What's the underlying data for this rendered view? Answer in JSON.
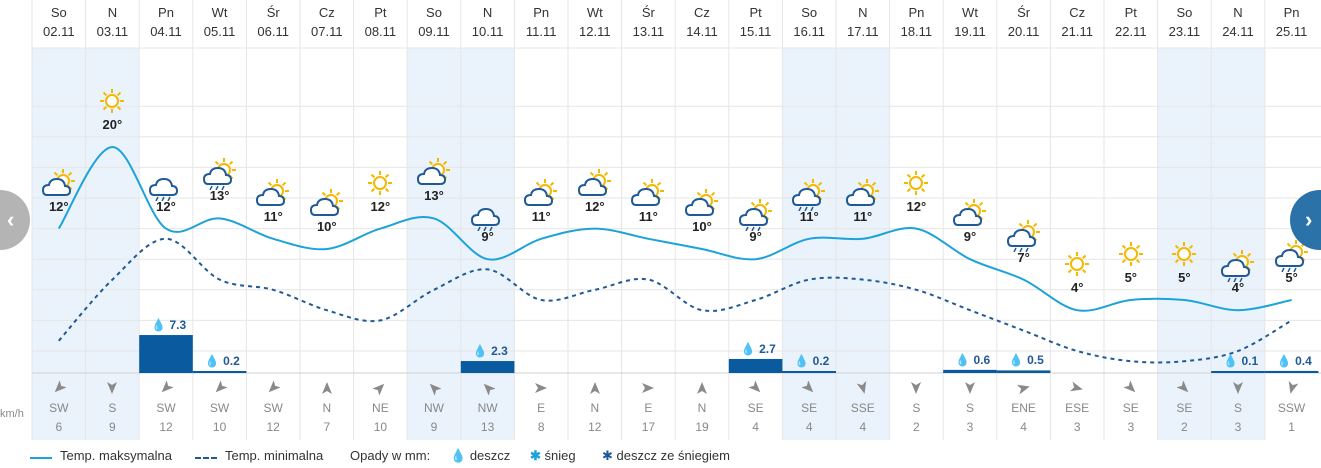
{
  "days": [
    {
      "day": "So",
      "date": "02.11",
      "weekend": true,
      "tmax": 12,
      "tmin": 1,
      "icon": "sun-cloud-icon",
      "precip": null,
      "dir": "SW",
      "speed": "6"
    },
    {
      "day": "N",
      "date": "03.11",
      "weekend": true,
      "tmax": 20,
      "tmin": 7,
      "icon": "sun-icon",
      "precip": null,
      "dir": "S",
      "speed": "9"
    },
    {
      "day": "Pn",
      "date": "04.11",
      "weekend": false,
      "tmax": 12,
      "tmin": 11,
      "icon": "rain-cloud-icon",
      "precip": "7.3",
      "precipVal": 7.3,
      "dir": "SW",
      "speed": "12"
    },
    {
      "day": "Wt",
      "date": "05.11",
      "weekend": false,
      "tmax": 13,
      "tmin": 7,
      "icon": "sun-rain-icon",
      "precip": "0.2",
      "precipVal": 0.2,
      "dir": "SW",
      "speed": "10"
    },
    {
      "day": "Śr",
      "date": "06.11",
      "weekend": false,
      "tmax": 11,
      "tmin": 6,
      "icon": "sun-cloud-icon",
      "precip": null,
      "dir": "SW",
      "speed": "12"
    },
    {
      "day": "Cz",
      "date": "07.11",
      "weekend": false,
      "tmax": 10,
      "tmin": 4,
      "icon": "sun-cloud-icon",
      "precip": null,
      "dir": "N",
      "speed": "7"
    },
    {
      "day": "Pt",
      "date": "08.11",
      "weekend": false,
      "tmax": 12,
      "tmin": 3,
      "icon": "sun-icon",
      "precip": null,
      "dir": "NE",
      "speed": "10"
    },
    {
      "day": "So",
      "date": "09.11",
      "weekend": true,
      "tmax": 13,
      "tmin": 6,
      "icon": "sun-cloud-icon",
      "precip": null,
      "dir": "NW",
      "speed": "9"
    },
    {
      "day": "N",
      "date": "10.11",
      "weekend": true,
      "tmax": 9,
      "tmin": 8,
      "icon": "rain-heavy-icon",
      "precip": "2.3",
      "precipVal": 2.3,
      "dir": "NW",
      "speed": "13"
    },
    {
      "day": "Pn",
      "date": "11.11",
      "weekend": false,
      "tmax": 11,
      "tmin": 5,
      "icon": "sun-cloud-icon",
      "precip": null,
      "dir": "E",
      "speed": "8"
    },
    {
      "day": "Wt",
      "date": "12.11",
      "weekend": false,
      "tmax": 12,
      "tmin": 6,
      "icon": "sun-cloud-icon",
      "precip": null,
      "dir": "N",
      "speed": "12"
    },
    {
      "day": "Śr",
      "date": "13.11",
      "weekend": false,
      "tmax": 11,
      "tmin": 7,
      "icon": "sun-cloud-icon",
      "precip": null,
      "dir": "E",
      "speed": "17"
    },
    {
      "day": "Cz",
      "date": "14.11",
      "weekend": false,
      "tmax": 10,
      "tmin": 4,
      "icon": "sun-cloud-icon",
      "precip": null,
      "dir": "N",
      "speed": "19"
    },
    {
      "day": "Pt",
      "date": "15.11",
      "weekend": false,
      "tmax": 9,
      "tmin": 5,
      "icon": "sun-rain-heavy-icon",
      "precip": "2.7",
      "precipVal": 2.7,
      "dir": "SE",
      "speed": "4"
    },
    {
      "day": "So",
      "date": "16.11",
      "weekend": true,
      "tmax": 11,
      "tmin": 7,
      "icon": "sun-rain-icon",
      "precip": "0.2",
      "precipVal": 0.2,
      "dir": "SE",
      "speed": "4"
    },
    {
      "day": "N",
      "date": "17.11",
      "weekend": true,
      "tmax": 11,
      "tmin": 7,
      "icon": "sun-cloud-icon",
      "precip": null,
      "dir": "SSE",
      "speed": "4"
    },
    {
      "day": "Pn",
      "date": "18.11",
      "weekend": false,
      "tmax": 12,
      "tmin": 6,
      "icon": "sun-icon",
      "precip": null,
      "dir": "S",
      "speed": "2"
    },
    {
      "day": "Wt",
      "date": "19.11",
      "weekend": false,
      "tmax": 9,
      "tmin": 4,
      "icon": "sun-cloud-icon",
      "precip": "0.6",
      "precipVal": 0.6,
      "dir": "S",
      "speed": "3"
    },
    {
      "day": "Śr",
      "date": "20.11",
      "weekend": false,
      "tmax": 7,
      "tmin": 2,
      "icon": "sun-rain-icon",
      "precip": "0.5",
      "precipVal": 0.5,
      "dir": "ENE",
      "speed": "4"
    },
    {
      "day": "Cz",
      "date": "21.11",
      "weekend": false,
      "tmax": 4,
      "tmin": 0,
      "icon": "sun-icon",
      "precip": null,
      "dir": "ESE",
      "speed": "3"
    },
    {
      "day": "Pt",
      "date": "22.11",
      "weekend": false,
      "tmax": 5,
      "tmin": -1,
      "icon": "sun-icon",
      "precip": null,
      "dir": "SE",
      "speed": "3"
    },
    {
      "day": "So",
      "date": "23.11",
      "weekend": true,
      "tmax": 5,
      "tmin": -1,
      "icon": "sun-icon",
      "precip": null,
      "dir": "SE",
      "speed": "2"
    },
    {
      "day": "N",
      "date": "24.11",
      "weekend": true,
      "tmax": 4,
      "tmin": 0,
      "icon": "sun-rain-icon",
      "precip": "0.1",
      "precipVal": 0.1,
      "dir": "S",
      "speed": "3"
    },
    {
      "day": "Pn",
      "date": "25.11",
      "weekend": false,
      "tmax": 5,
      "tmin": 3,
      "icon": "sun-rain-icon",
      "precip": "0.4",
      "precipVal": 0.4,
      "dir": "SSW",
      "speed": "1"
    }
  ],
  "yaxis": {
    "unit": "°C",
    "ticks": [
      0,
      3,
      6,
      9,
      12,
      15,
      18,
      21,
      24
    ]
  },
  "wind_unit": "km/h",
  "legend": {
    "max_label": "Temp. maksymalna",
    "min_label": "Temp. minimalna",
    "precip_title": "Opady w mm:",
    "rain": "deszcz",
    "snow": "śnieg",
    "sleet": "deszcz ze śniegiem"
  },
  "colors": {
    "line": "#1ca3d9",
    "min_line": "#1f5a96",
    "bar": "#0a5aa0",
    "weekend_bg": "#eaf3fb",
    "grid": "#e6e6e6",
    "nav_right": "#2b72a8"
  }
}
